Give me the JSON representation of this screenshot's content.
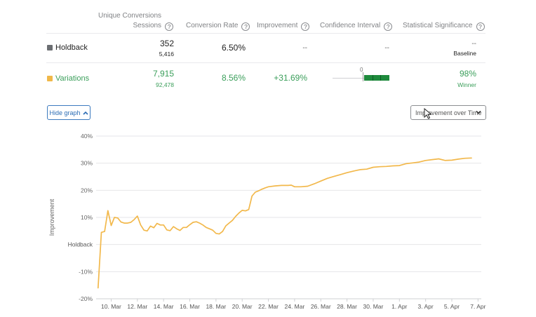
{
  "table": {
    "headers": {
      "conversions_line1": "Unique Conversions",
      "conversions_line2": "Sessions",
      "conversion_rate": "Conversion Rate",
      "improvement": "Improvement",
      "confidence_interval": "Confidence Interval",
      "statistical_significance": "Statistical Significance",
      "help_glyph": "?"
    },
    "rows": [
      {
        "name": "Holdback",
        "color": "#6b6e72",
        "conversions": "352",
        "sessions": "5,416",
        "conversion_rate": "6.50%",
        "improvement": "--",
        "confidence_interval": "--",
        "significance": "--",
        "significance_note": "Baseline"
      },
      {
        "name": "Variations",
        "color": "#f0b849",
        "conversions": "7,915",
        "sessions": "92,478",
        "conversion_rate": "8.56%",
        "improvement": "+31.69%",
        "confidence_interval_zero": "0",
        "significance": "98%",
        "significance_note": "Winner"
      }
    ]
  },
  "controls": {
    "hide_graph_label": "Hide graph",
    "hide_graph_icon": "chevron-up-icon",
    "metric_select_value": "Improvement over Time",
    "metric_select_icon": "chevron-down-icon"
  },
  "chart_data": {
    "type": "line",
    "ylabel": "Improvement",
    "baseline_label": "Holdback",
    "ylim": [
      -20,
      40
    ],
    "y_ticks": [
      {
        "value": 40,
        "label": "40%"
      },
      {
        "value": 30,
        "label": "30%"
      },
      {
        "value": 20,
        "label": "20%"
      },
      {
        "value": 10,
        "label": "10%"
      },
      {
        "value": -10,
        "label": "-10%"
      },
      {
        "value": -20,
        "label": "-20%"
      }
    ],
    "x_ticks": [
      {
        "day": 1,
        "label": "10. Mar"
      },
      {
        "day": 3,
        "label": "12. Mar"
      },
      {
        "day": 5,
        "label": "14. Mar"
      },
      {
        "day": 7,
        "label": "16. Mar"
      },
      {
        "day": 9,
        "label": "18. Mar"
      },
      {
        "day": 11,
        "label": "20. Mar"
      },
      {
        "day": 13,
        "label": "22. Mar"
      },
      {
        "day": 15,
        "label": "24. Mar"
      },
      {
        "day": 17,
        "label": "26. Mar"
      },
      {
        "day": 19,
        "label": "28. Mar"
      },
      {
        "day": 21,
        "label": "30. Mar"
      },
      {
        "day": 23,
        "label": "1. Apr"
      },
      {
        "day": 25,
        "label": "3. Apr"
      },
      {
        "day": 27,
        "label": "5. Apr"
      },
      {
        "day": 29,
        "label": "7. Apr"
      }
    ],
    "grid": true,
    "series": [
      {
        "color": "#f2b84b",
        "points": [
          [
            0.0,
            -16
          ],
          [
            0.25,
            4.5
          ],
          [
            0.5,
            4.8
          ],
          [
            0.75,
            12.5
          ],
          [
            1.0,
            7
          ],
          [
            1.25,
            10
          ],
          [
            1.5,
            9.8
          ],
          [
            1.75,
            8.3
          ],
          [
            2.0,
            7.9
          ],
          [
            2.25,
            7.9
          ],
          [
            2.5,
            8.2
          ],
          [
            2.75,
            9.2
          ],
          [
            3.0,
            10.5
          ],
          [
            3.25,
            7.2
          ],
          [
            3.5,
            5.3
          ],
          [
            3.75,
            5
          ],
          [
            4.0,
            6.8
          ],
          [
            4.25,
            6.2
          ],
          [
            4.5,
            7.8
          ],
          [
            4.75,
            7.2
          ],
          [
            5.0,
            7.2
          ],
          [
            5.25,
            5.4
          ],
          [
            5.5,
            5.1
          ],
          [
            5.75,
            6.6
          ],
          [
            6.0,
            5.8
          ],
          [
            6.25,
            5.2
          ],
          [
            6.5,
            6.3
          ],
          [
            6.75,
            6.3
          ],
          [
            7.0,
            7.3
          ],
          [
            7.25,
            8.2
          ],
          [
            7.5,
            8.4
          ],
          [
            7.75,
            7.9
          ],
          [
            8.0,
            7.2
          ],
          [
            8.25,
            6.3
          ],
          [
            8.5,
            5.8
          ],
          [
            8.75,
            5.3
          ],
          [
            9.0,
            4.1
          ],
          [
            9.25,
            3.9
          ],
          [
            9.5,
            4.8
          ],
          [
            9.75,
            6.9
          ],
          [
            10.0,
            7.9
          ],
          [
            10.25,
            8.9
          ],
          [
            10.5,
            10.4
          ],
          [
            10.75,
            11.6
          ],
          [
            11.0,
            12.6
          ],
          [
            11.25,
            12.4
          ],
          [
            11.5,
            12.9
          ],
          [
            11.75,
            17.9
          ],
          [
            12.0,
            19.3
          ],
          [
            12.25,
            19.8
          ],
          [
            12.5,
            20.4
          ],
          [
            12.75,
            20.9
          ],
          [
            13.0,
            21.3
          ],
          [
            13.5,
            21.6
          ],
          [
            14.0,
            21.8
          ],
          [
            14.5,
            21.8
          ],
          [
            14.75,
            21.9
          ],
          [
            15.0,
            21.3
          ],
          [
            15.5,
            21.3
          ],
          [
            16.0,
            21.5
          ],
          [
            16.5,
            22.4
          ],
          [
            17.0,
            23.4
          ],
          [
            17.5,
            24.4
          ],
          [
            18.0,
            25.1
          ],
          [
            18.5,
            25.8
          ],
          [
            19.0,
            26.5
          ],
          [
            19.5,
            27.1
          ],
          [
            20.0,
            27.6
          ],
          [
            20.5,
            27.8
          ],
          [
            21.0,
            28.5
          ],
          [
            21.5,
            28.7
          ],
          [
            22.0,
            28.8
          ],
          [
            22.5,
            29.0
          ],
          [
            23.0,
            29.1
          ],
          [
            23.5,
            29.8
          ],
          [
            24.0,
            30.1
          ],
          [
            24.5,
            30.4
          ],
          [
            25.0,
            31.0
          ],
          [
            25.5,
            31.3
          ],
          [
            26.0,
            31.6
          ],
          [
            26.5,
            31.0
          ],
          [
            27.0,
            31.1
          ],
          [
            27.5,
            31.5
          ],
          [
            28.0,
            31.8
          ],
          [
            28.5,
            31.9
          ]
        ]
      }
    ]
  }
}
